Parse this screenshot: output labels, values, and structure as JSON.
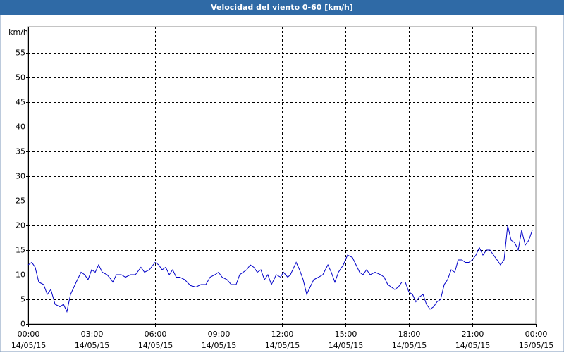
{
  "chart_data": {
    "type": "line",
    "title": "Velocidad del viento 0-60 [km/h]",
    "y_label": "km/h",
    "color": "#0000c8",
    "grid": true,
    "xlim": [
      0,
      24
    ],
    "ylim": [
      0,
      60
    ],
    "xticks": [
      {
        "value": 0,
        "label": "00:00",
        "date": "14/05/15"
      },
      {
        "value": 3,
        "label": "03:00",
        "date": "14/05/15"
      },
      {
        "value": 6,
        "label": "06:00",
        "date": "14/05/15"
      },
      {
        "value": 9,
        "label": "09:00",
        "date": "14/05/15"
      },
      {
        "value": 12,
        "label": "12:00",
        "date": "14/05/15"
      },
      {
        "value": 15,
        "label": "15:00",
        "date": "14/05/15"
      },
      {
        "value": 18,
        "label": "18:00",
        "date": "14/05/15"
      },
      {
        "value": 21,
        "label": "21:00",
        "date": "14/05/15"
      },
      {
        "value": 24,
        "label": "00:00",
        "date": "15/05/15"
      }
    ],
    "yticks": [
      0,
      5,
      10,
      15,
      20,
      25,
      30,
      35,
      40,
      45,
      50,
      55
    ],
    "x": [
      0,
      0.17,
      0.33,
      0.5,
      0.73,
      0.9,
      1.07,
      1.27,
      1.5,
      1.67,
      1.83,
      2,
      2.27,
      2.5,
      2.67,
      2.83,
      3,
      3.17,
      3.33,
      3.5,
      3.73,
      3.93,
      4,
      4.17,
      4.4,
      4.6,
      4.83,
      5.07,
      5.33,
      5.5,
      5.73,
      6,
      6.17,
      6.33,
      6.5,
      6.67,
      6.83,
      7,
      7.17,
      7.4,
      7.67,
      7.93,
      8.17,
      8.4,
      8.6,
      8.83,
      9,
      9.17,
      9.4,
      9.6,
      9.83,
      10,
      10.33,
      10.5,
      10.67,
      10.83,
      11,
      11.17,
      11.33,
      11.5,
      11.73,
      11.93,
      12.07,
      12.27,
      12.4,
      12.67,
      12.83,
      13,
      13.17,
      13.33,
      13.5,
      13.73,
      13.93,
      14.17,
      14.33,
      14.5,
      14.67,
      14.9,
      15.1,
      15.33,
      15.5,
      15.67,
      15.83,
      16,
      16.17,
      16.4,
      16.67,
      16.83,
      17,
      17.17,
      17.33,
      17.5,
      17.67,
      17.83,
      18,
      18.17,
      18.33,
      18.5,
      18.67,
      18.83,
      19,
      19.17,
      19.33,
      19.5,
      19.67,
      19.83,
      20,
      20.17,
      20.33,
      20.5,
      20.67,
      20.83,
      21,
      21.17,
      21.33,
      21.5,
      21.67,
      21.83,
      22,
      22.17,
      22.33,
      22.5,
      22.67,
      22.83,
      23,
      23.17,
      23.33,
      23.5,
      23.67,
      23.83
    ],
    "values": [
      12,
      12.5,
      11.5,
      8.5,
      8,
      6,
      7,
      4,
      3.5,
      4,
      2.5,
      6,
      8.5,
      10.5,
      10,
      9,
      11,
      10.5,
      12,
      10.5,
      10,
      9,
      8.5,
      10,
      10,
      9.5,
      10,
      10,
      11.5,
      10.5,
      11,
      12.5,
      12,
      11,
      11.5,
      10,
      11,
      9.5,
      9.5,
      9,
      7.8,
      7.5,
      8,
      8,
      9.5,
      10,
      10.5,
      9.5,
      9,
      8,
      8,
      10,
      11,
      12,
      11.5,
      10.5,
      11,
      9,
      10,
      8,
      10,
      9.5,
      10.5,
      9.5,
      10,
      12.5,
      11,
      9,
      6,
      7.5,
      9,
      9.5,
      10,
      12,
      10.5,
      8.5,
      10.5,
      12,
      14,
      13.5,
      12,
      10.5,
      10,
      11,
      10,
      10.5,
      10,
      9.5,
      8,
      7.5,
      7,
      7.5,
      8.5,
      8.5,
      6.5,
      6,
      4.5,
      5.5,
      6,
      4,
      3,
      3.5,
      4.5,
      5,
      8,
      9,
      11,
      10.5,
      13,
      13,
      12.5,
      12.5,
      13,
      14,
      15.5,
      14,
      15,
      15,
      14,
      13,
      12,
      13,
      20,
      17,
      16.5,
      15,
      19,
      16,
      17,
      19
    ]
  }
}
